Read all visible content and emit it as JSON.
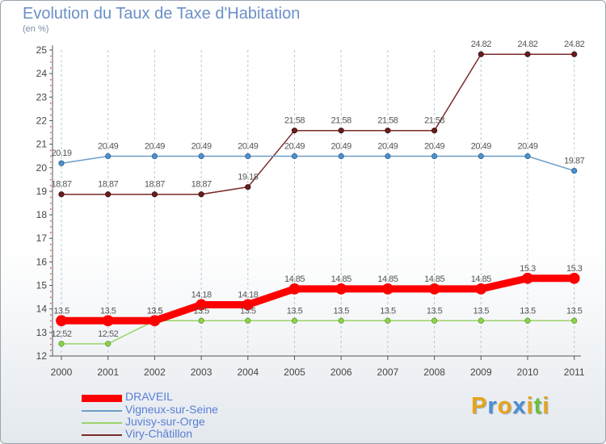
{
  "chart_data": {
    "type": "line",
    "title": "Evolution du Taux de Taxe d'Habitation",
    "subtitle": "(en %)",
    "xlabel": "",
    "ylabel": "",
    "ylim": [
      12,
      25
    ],
    "yticks": [
      "12",
      "13",
      "14",
      "15",
      "16",
      "17",
      "18",
      "19",
      "20",
      "21",
      "22",
      "23",
      "24",
      "25"
    ],
    "x": [
      "2000",
      "2001",
      "2002",
      "2003",
      "2004",
      "2005",
      "2006",
      "2007",
      "2008",
      "2009",
      "2010",
      "2011"
    ],
    "grid": "vertical dashed",
    "legend_position": "bottom-left",
    "series": [
      {
        "name": "DRAVEIL",
        "color": "#ff0000",
        "values": [
          13.5,
          13.5,
          13.5,
          14.18,
          14.18,
          14.85,
          14.85,
          14.85,
          14.85,
          14.85,
          15.3,
          15.3
        ],
        "labels": [
          "13.5",
          "13.5",
          "13.5",
          "14.18",
          "14.18",
          "14.85",
          "14.85",
          "14.85",
          "14.85",
          "14.85",
          "15.3",
          "15.3"
        ]
      },
      {
        "name": "Vigneux-sur-Seine",
        "color": "#6c9ec8",
        "values": [
          20.19,
          20.49,
          20.49,
          20.49,
          20.49,
          20.49,
          20.49,
          20.49,
          20.49,
          20.49,
          20.49,
          19.87
        ],
        "labels": [
          "20.19",
          "20.49",
          "20.49",
          "20.49",
          "20.49",
          "20.49",
          "20.49",
          "20.49",
          "20.49",
          "20.49",
          "20.49",
          "19.87"
        ]
      },
      {
        "name": "Juvisy-sur-Orge",
        "color": "#9cd36a",
        "values": [
          12.52,
          12.52,
          13.5,
          13.5,
          13.5,
          13.5,
          13.5,
          13.5,
          13.5,
          13.5,
          13.5,
          13.5
        ],
        "labels": [
          "12.52",
          "12.52",
          "13.5",
          "13.5",
          "13.5",
          "13.5",
          "13.5",
          "13.5",
          "13.5",
          "13.5",
          "13.5",
          "13.5"
        ]
      },
      {
        "name": "Viry-Châtillon",
        "color": "#7a2a2a",
        "values": [
          18.87,
          18.87,
          18.87,
          18.87,
          19.18,
          21.58,
          21.58,
          21.58,
          21.58,
          24.82,
          24.82,
          24.82
        ],
        "labels": [
          "18.87",
          "18.87",
          "18.87",
          "18.87",
          "19.18",
          "21.58",
          "21.58",
          "21.58",
          "21.58",
          "24.82",
          "24.82",
          "24.82"
        ]
      }
    ]
  },
  "logo": {
    "letters": [
      "P",
      "r",
      "o",
      "x",
      "i",
      "t",
      "i"
    ],
    "colors": [
      "#e8a31c",
      "#4c8ed6",
      "#e8a31c",
      "#4c8ed6",
      "#e8a31c",
      "#6cbf3c",
      "#e8a31c"
    ]
  }
}
